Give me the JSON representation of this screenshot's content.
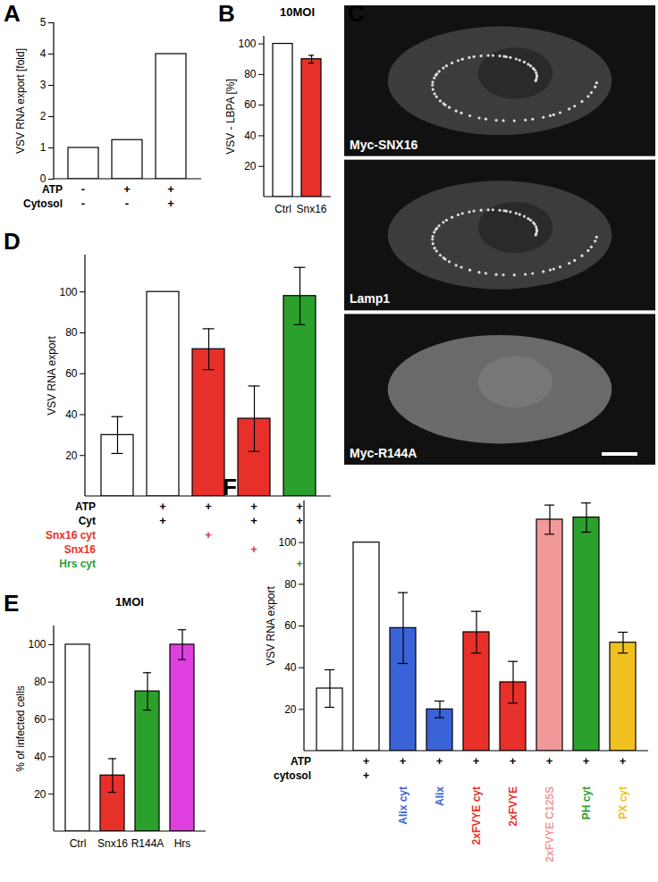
{
  "chart_data": [
    {
      "type": "bar",
      "panel": "A",
      "y_label": "VSV RNA export [fold]",
      "categories": [
        null,
        null,
        null
      ],
      "values": [
        1,
        1.25,
        4
      ],
      "colors": [
        "#ffffff",
        "#ffffff",
        "#ffffff"
      ],
      "ylim": [
        0,
        5
      ],
      "yticks": [
        0,
        1,
        2,
        3,
        4,
        5
      ],
      "rows": [
        {
          "label": "ATP",
          "values": [
            "-",
            "+",
            "+"
          ]
        },
        {
          "label": "Cytosol",
          "values": [
            "-",
            "-",
            "+"
          ]
        }
      ]
    },
    {
      "type": "bar",
      "panel": "B",
      "title": "10MOI",
      "y_label": "VSV - LBPA [%]",
      "categories": [
        "Ctrl",
        "Snx16"
      ],
      "values": [
        100,
        90
      ],
      "errors": [
        null,
        2.5
      ],
      "colors": [
        "#ffffff",
        "#e8302a"
      ],
      "ylim": [
        0,
        105
      ],
      "yticks": [
        20,
        40,
        60,
        80,
        100
      ]
    },
    {
      "type": "image",
      "panel": "C",
      "labels": [
        "Myc-SNX16",
        "Lamp1",
        "Myc-R144A"
      ]
    },
    {
      "type": "bar",
      "panel": "D",
      "y_label": "VSV RNA export",
      "categories": [
        null,
        null,
        null,
        null,
        null
      ],
      "values": [
        30,
        100,
        72,
        38,
        98
      ],
      "errors": [
        9,
        null,
        10,
        16,
        14
      ],
      "colors": [
        "#ffffff",
        "#ffffff",
        "#e8302a",
        "#e8302a",
        "#2ca02c"
      ],
      "ylim": [
        0,
        118
      ],
      "yticks": [
        20,
        40,
        60,
        80,
        100
      ],
      "rows": [
        {
          "label": "ATP",
          "values": [
            null,
            "+",
            "+",
            "+",
            "+"
          ]
        },
        {
          "label": "Cyt",
          "values": [
            null,
            "+",
            null,
            "+",
            "+"
          ]
        },
        {
          "label": "Snx16 cyt",
          "color": "#e8302a",
          "values": [
            null,
            null,
            "+",
            null,
            null
          ]
        },
        {
          "label": "Snx16",
          "color": "#e8302a",
          "values": [
            null,
            null,
            null,
            "+",
            null
          ]
        },
        {
          "label": "Hrs cyt",
          "color": "#2ca02c",
          "values": [
            null,
            null,
            null,
            null,
            "+"
          ]
        }
      ]
    },
    {
      "type": "bar",
      "panel": "E",
      "title": "1MOI",
      "y_label": "% of infected cells",
      "categories": [
        "Ctrl",
        "Snx16",
        "R144A",
        "Hrs"
      ],
      "values": [
        100,
        30,
        75,
        100
      ],
      "errors": [
        null,
        9,
        10,
        8
      ],
      "colors": [
        "#ffffff",
        "#e8302a",
        "#2ca02c",
        "#e040e0"
      ],
      "ylim": [
        0,
        110
      ],
      "yticks": [
        20,
        40,
        60,
        80,
        100
      ]
    },
    {
      "type": "bar",
      "panel": "F",
      "y_label": "VSV RNA export",
      "categories": [
        null,
        null,
        "Alix cyt",
        "Alix",
        "2xFVYE cyt",
        "2xFVYE",
        "2xFVYE C125S",
        "PH cyt",
        "PX cyt"
      ],
      "values": [
        30,
        100,
        59,
        20,
        57,
        33,
        111,
        112,
        52
      ],
      "errors": [
        9,
        null,
        17,
        4,
        10,
        10,
        7,
        7,
        5
      ],
      "colors": [
        "#ffffff",
        "#ffffff",
        "#3a63d8",
        "#3a63d8",
        "#e8302a",
        "#e8302a",
        "#f29a9a",
        "#2ca02c",
        "#f0c020"
      ],
      "ylim": [
        0,
        120
      ],
      "yticks": [
        20,
        40,
        60,
        80,
        100
      ],
      "rows": [
        {
          "label": "ATP",
          "values": [
            null,
            "+",
            "+",
            "+",
            "+",
            "+",
            "+",
            "+",
            "+"
          ]
        },
        {
          "label": "cytosol",
          "values": [
            null,
            "+",
            null,
            null,
            null,
            null,
            null,
            null,
            null
          ]
        }
      ]
    }
  ]
}
